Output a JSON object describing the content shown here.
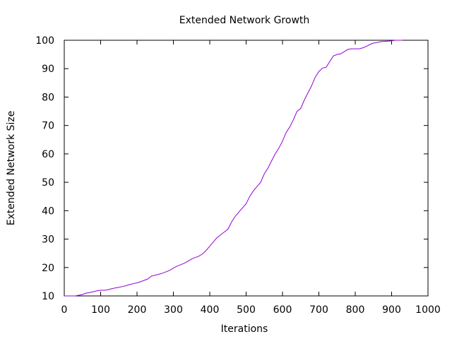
{
  "chart_data": {
    "type": "line",
    "title": "Extended Network Growth",
    "xlabel": "Iterations",
    "ylabel": "Extended Network Size",
    "xlim": [
      0,
      1000
    ],
    "ylim": [
      10,
      100
    ],
    "xticks": [
      0,
      100,
      200,
      300,
      400,
      500,
      600,
      700,
      800,
      900,
      1000
    ],
    "yticks": [
      10,
      20,
      30,
      40,
      50,
      60,
      70,
      80,
      90,
      100
    ],
    "grid": false,
    "legend": "none",
    "series": [
      {
        "color": "#9400d3",
        "x": [
          0,
          10,
          30,
          50,
          60,
          70,
          80,
          90,
          100,
          110,
          120,
          130,
          140,
          150,
          160,
          170,
          180,
          190,
          200,
          210,
          220,
          230,
          240,
          250,
          260,
          270,
          280,
          290,
          300,
          310,
          320,
          330,
          340,
          350,
          360,
          370,
          380,
          390,
          400,
          410,
          420,
          430,
          440,
          450,
          460,
          470,
          480,
          490,
          500,
          510,
          520,
          530,
          540,
          550,
          560,
          570,
          580,
          590,
          600,
          610,
          620,
          630,
          640,
          650,
          660,
          670,
          680,
          690,
          700,
          710,
          720,
          730,
          740,
          750,
          760,
          770,
          780,
          790,
          800,
          810,
          820,
          830,
          840,
          850,
          860,
          870,
          880,
          890,
          900,
          910,
          920,
          930
        ],
        "y": [
          10,
          10,
          10,
          10.5,
          11,
          11.2,
          11.5,
          11.8,
          12,
          12,
          12.2,
          12.5,
          12.8,
          13,
          13.3,
          13.6,
          14,
          14.3,
          14.6,
          15,
          15.5,
          16,
          17,
          17.3,
          17.6,
          18,
          18.5,
          19,
          19.8,
          20.5,
          21,
          21.5,
          22.2,
          23,
          23.5,
          24,
          24.8,
          26,
          27.5,
          29,
          30.5,
          31.5,
          32.5,
          33.5,
          36,
          38,
          39.5,
          41,
          42.5,
          45,
          47,
          48.5,
          50,
          53,
          55,
          57.5,
          60,
          62,
          64.5,
          67.5,
          69.5,
          72,
          75,
          76,
          79,
          81.5,
          84,
          87,
          89,
          90.2,
          90.5,
          92.5,
          94.5,
          95,
          95.2,
          96,
          96.8,
          97,
          97,
          97,
          97.3,
          97.8,
          98.5,
          99,
          99.2,
          99.5,
          99.6,
          99.7,
          99.8,
          100,
          100,
          100
        ]
      }
    ]
  }
}
